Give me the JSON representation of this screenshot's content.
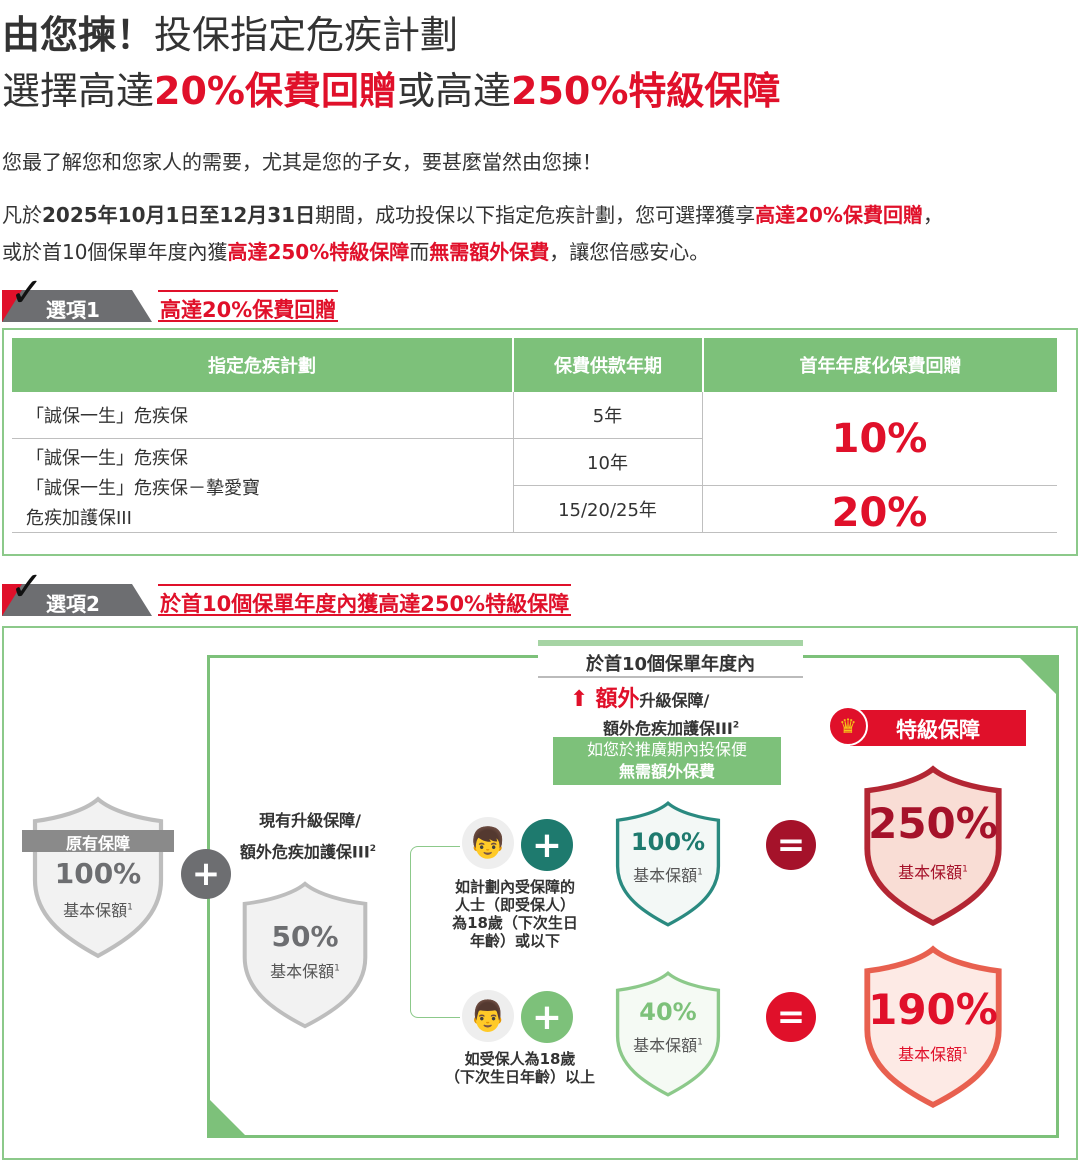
{
  "title": {
    "line1_bold": "由您揀！",
    "line1_rest": "投保指定危疾計劃",
    "line2_a": "選擇高達",
    "line2_b": "20%保費回贈",
    "line2_c": "或高達",
    "line2_d": "250%特級保障"
  },
  "intro": "您最了解您和您家人的需要，尤其是您的子女，要甚麼當然由您揀！",
  "para": {
    "a": "凡於",
    "b": "2025年10月1日至12月31日",
    "c": "期間，成功投保以下指定危疾計劃，您可選擇獲享",
    "d": "高達20%保費回贈",
    "e": "，",
    "f": "或於首10個保單年度內獲",
    "g": "高達250%特級保障",
    "h": "而",
    "i": "無需額外保費",
    "j": "，讓您倍感安心。"
  },
  "option1": {
    "label": "選項1",
    "title": "高達20%保費回贈",
    "headers": [
      "指定危疾計劃",
      "保費供款年期",
      "首年年度化保費回贈"
    ],
    "plans": [
      "「誠保一生」危疾保",
      "「誠保一生」危疾保",
      "「誠保一生」危疾保－摯愛寶",
      "危疾加護保III"
    ],
    "terms": [
      "5年",
      "10年",
      "15/20/25年"
    ],
    "rebates": [
      "10%",
      "20%"
    ]
  },
  "option2": {
    "label": "選項2",
    "title": "於首10個保單年度內獲高達250%特級保障",
    "period": "於首10個保單年度內",
    "extra_red": "額外",
    "extra_rest": "升級保障/",
    "extra_line2": "額外危疾加護保III",
    "sup2": "2",
    "banner1": "如您於推廣期內投保便",
    "banner2": "無需額外保費",
    "special": "特級保障",
    "existing": {
      "label": "原有保障",
      "value": "100%",
      "unit": "基本保額",
      "sup": "1"
    },
    "upgrade_l1": "現有升級保障/",
    "upgrade_l2": "額外危疾加護保III",
    "upgrade": {
      "value": "50%",
      "unit": "基本保額"
    },
    "child_text": [
      "如計劃內受保障的",
      "人士（即受保人）",
      "為18歲（下次生日",
      "年齡）或以下"
    ],
    "adult_text": [
      "如受保人為18歲",
      "（下次生日年齡）以上"
    ],
    "child_extra": {
      "value": "100%",
      "unit": "基本保額"
    },
    "adult_extra": {
      "value": "40%",
      "unit": "基本保額"
    },
    "child_total": {
      "value": "250%",
      "unit": "基本保額"
    },
    "adult_total": {
      "value": "190%",
      "unit": "基本保額"
    }
  },
  "colors": {
    "red": "#e0102a",
    "green": "#7dc17a",
    "teal": "#1e7a6e",
    "grey": "#8a8a8a"
  }
}
